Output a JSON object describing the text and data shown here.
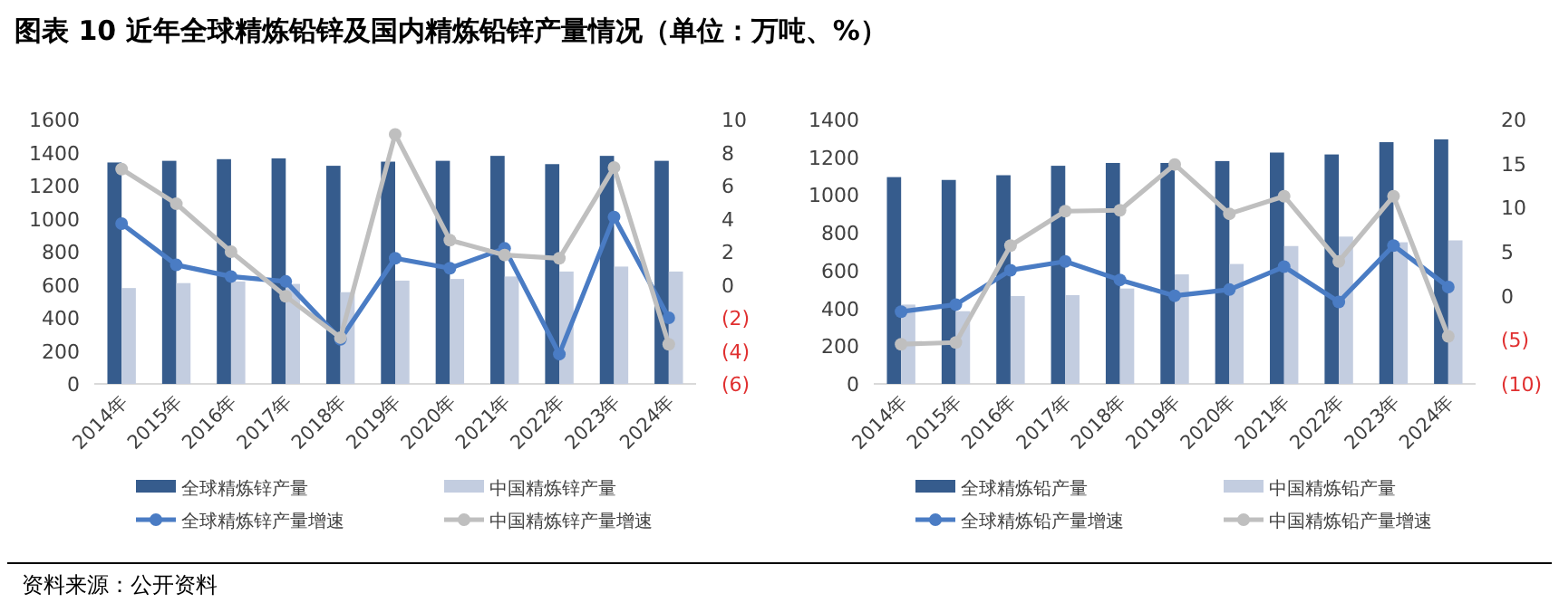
{
  "chart_data": [
    {
      "type": "bar",
      "title": "图表 10    近年全球精炼铅锌及国内精炼铅锌产量情况（单位：万吨、%）",
      "annotations": [
        "资料来源：公开资料"
      ],
      "categories": [
        "2014年",
        "2015年",
        "2016年",
        "2017年",
        "2018年",
        "2019年",
        "2020年",
        "2021年",
        "2022年",
        "2023年",
        "2024年"
      ],
      "ylim": [
        0,
        1600
      ],
      "yticks": [
        0,
        200,
        400,
        600,
        800,
        1000,
        1200,
        1400,
        1600
      ],
      "y2lim": [
        -6,
        10
      ],
      "y2ticks": [
        {
          "value": -6,
          "label": "(6)"
        },
        {
          "value": -4,
          "label": "(4)"
        },
        {
          "value": -2,
          "label": "(2)"
        },
        0,
        2,
        4,
        6,
        8,
        10
      ],
      "legend": "bottom",
      "marker": "circle",
      "series": [
        {
          "name": "全球精炼锌产量",
          "color": "#365c8d",
          "values": [
            1340,
            1350,
            1360,
            1365,
            1320,
            1345,
            1350,
            1380,
            1330,
            1380,
            1350
          ]
        },
        {
          "name": "中国精炼锌产量",
          "color": "#c3cde0",
          "values": [
            580,
            610,
            620,
            605,
            555,
            625,
            635,
            650,
            680,
            710,
            680
          ]
        },
        {
          "name": "全球精炼锌产量增速",
          "type": "line",
          "axis": "y2",
          "color": "#4a7cc4",
          "values": [
            3.7,
            1.2,
            0.5,
            0.2,
            -3.3,
            1.6,
            1.0,
            2.2,
            -4.2,
            4.1,
            -2.0
          ]
        },
        {
          "name": "中国精炼锌产量增速",
          "type": "line",
          "axis": "y2",
          "color": "#bfbfbf",
          "values": [
            7.0,
            4.9,
            2.0,
            -0.7,
            -3.2,
            9.1,
            2.7,
            1.8,
            1.6,
            7.1,
            -3.6
          ]
        }
      ]
    },
    {
      "type": "bar",
      "categories": [
        "2014年",
        "2015年",
        "2016年",
        "2017年",
        "2018年",
        "2019年",
        "2020年",
        "2021年",
        "2022年",
        "2023年",
        "2024年"
      ],
      "ylim": [
        0,
        1400
      ],
      "yticks": [
        0,
        200,
        400,
        600,
        800,
        1000,
        1200,
        1400
      ],
      "y2lim": [
        -10,
        20
      ],
      "y2ticks": [
        {
          "value": -10,
          "label": "(10)"
        },
        {
          "value": -5,
          "label": "(5)"
        },
        0,
        5,
        10,
        15,
        20
      ],
      "legend": "bottom",
      "marker": "circle",
      "series": [
        {
          "name": "全球精炼铅产量",
          "color": "#365c8d",
          "values": [
            1095,
            1080,
            1105,
            1155,
            1170,
            1170,
            1180,
            1225,
            1215,
            1280,
            1295
          ]
        },
        {
          "name": "中国精炼铅产量",
          "color": "#c3cde0",
          "values": [
            420,
            385,
            465,
            470,
            505,
            580,
            635,
            730,
            780,
            750,
            760
          ]
        },
        {
          "name": "全球精炼铅产量增速",
          "type": "line",
          "axis": "y2",
          "color": "#4a7cc4",
          "values": [
            -1.8,
            -1.0,
            2.9,
            3.9,
            1.8,
            0,
            0.7,
            3.3,
            -0.7,
            5.7,
            1.0
          ]
        },
        {
          "name": "中国精炼铅产量增速",
          "type": "line",
          "axis": "y2",
          "color": "#bfbfbf",
          "values": [
            -5.5,
            -5.3,
            5.7,
            9.6,
            9.7,
            14.9,
            9.3,
            11.3,
            3.9,
            11.3,
            -4.6
          ]
        }
      ]
    }
  ]
}
